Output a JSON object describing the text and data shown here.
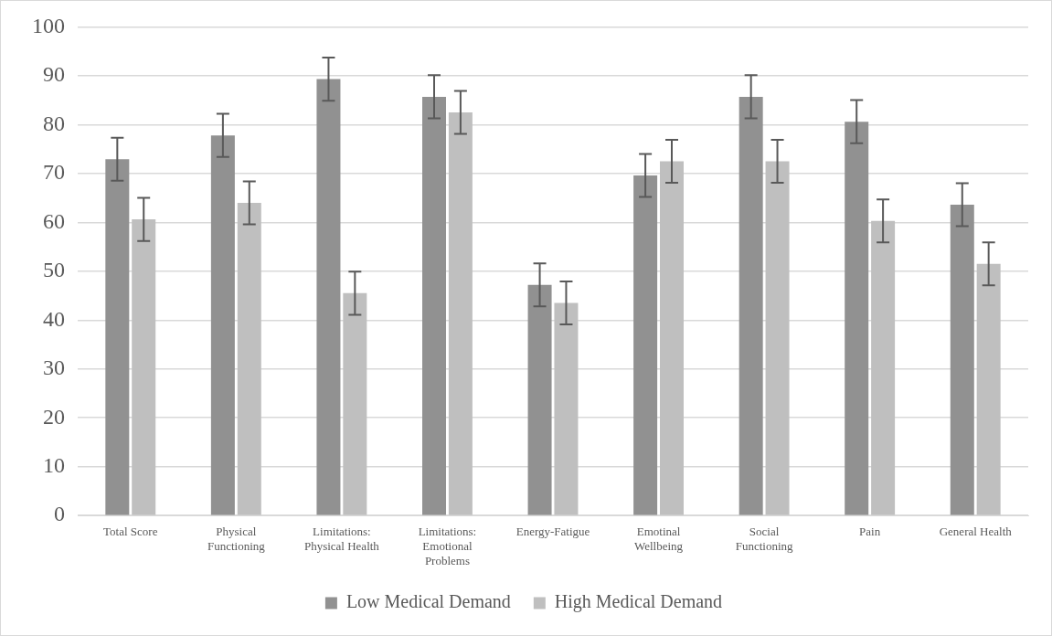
{
  "chart_data": {
    "type": "bar",
    "categories": [
      "Total Score",
      "Physical Functioning",
      "Limitations: Physical Health",
      "Limitations: Emotional Problems",
      "Energy-Fatigue",
      "Emotinal Wellbeing",
      "Social Functioning",
      "Pain",
      "General Health"
    ],
    "series": [
      {
        "name": "Low Medical Demand",
        "color": "#919191",
        "values": [
          72.9,
          77.8,
          89.3,
          85.7,
          47.2,
          69.6,
          85.7,
          80.6,
          63.6
        ],
        "errors": [
          4.4,
          4.4,
          4.4,
          4.4,
          4.4,
          4.4,
          4.4,
          4.4,
          4.4
        ]
      },
      {
        "name": "High Medical Demand",
        "color": "#bfbfbf",
        "values": [
          60.6,
          64.0,
          45.5,
          82.5,
          43.5,
          72.5,
          72.5,
          60.3,
          51.5
        ],
        "errors": [
          4.4,
          4.4,
          4.4,
          4.4,
          4.4,
          4.4,
          4.4,
          4.4,
          4.4
        ]
      }
    ],
    "ylim": [
      0,
      100
    ],
    "yticks": [
      0,
      10,
      20,
      30,
      40,
      50,
      60,
      70,
      80,
      90,
      100
    ],
    "grid": "y",
    "legend": "bottom"
  }
}
